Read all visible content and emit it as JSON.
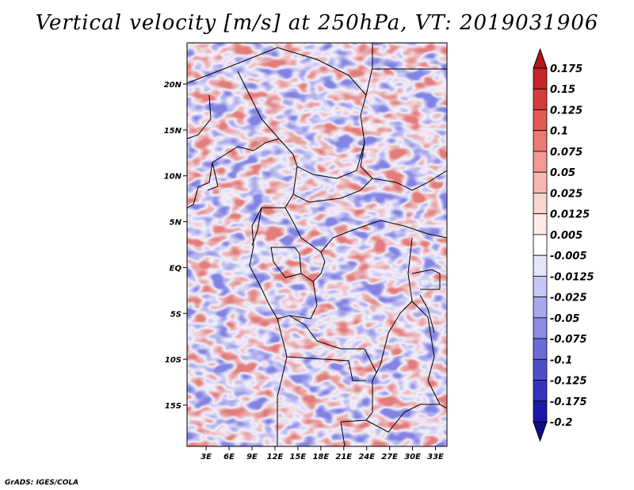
{
  "title": "Vertical velocity [m/s] at 250hPa, VT: 2019031906",
  "footer": "GrADS: IGES/COLA",
  "map": {
    "lat_labels": [
      "20N",
      "15N",
      "10N",
      "5N",
      "EQ",
      "5S",
      "10S",
      "15S"
    ],
    "lat_values": [
      20,
      15,
      10,
      5,
      0,
      -5,
      -10,
      -15
    ],
    "lon_labels": [
      "3E",
      "6E",
      "9E",
      "12E",
      "15E",
      "18E",
      "21E",
      "24E",
      "27E",
      "30E",
      "33E"
    ],
    "lon_values": [
      3,
      6,
      9,
      12,
      15,
      18,
      21,
      24,
      27,
      30,
      33
    ],
    "lon_range": [
      0.5,
      34.5
    ],
    "lat_range": [
      -19.5,
      24.5
    ]
  },
  "colorbar": {
    "labels": [
      "0.175",
      "0.15",
      "0.125",
      "0.1",
      "0.075",
      "0.05",
      "0.025",
      "0.0125",
      "0.005",
      "-0.005",
      "-0.0125",
      "-0.025",
      "-0.05",
      "-0.075",
      "-0.1",
      "-0.125",
      "-0.175",
      "-0.2"
    ],
    "colors": [
      "#b3161c",
      "#c8252a",
      "#d63c3c",
      "#e15a55",
      "#ea7a72",
      "#f19a92",
      "#f6b8b1",
      "#fad4cf",
      "#fde9e6",
      "#ffffff",
      "#e4e4fb",
      "#c6c7f4",
      "#a8a9ec",
      "#8a8be3",
      "#6c6cd9",
      "#4f4fce",
      "#3333c0",
      "#1a1aa8",
      "#0d0d8c"
    ]
  }
}
